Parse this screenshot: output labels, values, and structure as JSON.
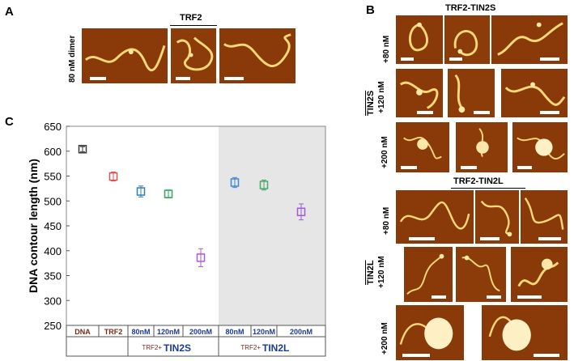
{
  "panelA": {
    "letter": "A",
    "header": "TRF2",
    "row_label": "80 nM dimer"
  },
  "panelB": {
    "letter": "B",
    "header_top": "TRF2-TIN2S",
    "group_top_label": "TIN2S",
    "header_bottom": "TRF2-TIN2L",
    "group_bottom_label": "TIN2L",
    "rows_top": [
      "+80 nM",
      "+120 nM",
      "+200 nM"
    ],
    "rows_bottom": [
      "+80 nM",
      "+120 nM",
      "+200 nM"
    ]
  },
  "panelC": {
    "letter": "C"
  },
  "chart_data": {
    "type": "scatter",
    "ylabel": "DNA contour length (nm)",
    "ylim": [
      250,
      650
    ],
    "yticks": [
      250,
      300,
      350,
      400,
      450,
      500,
      550,
      600,
      650
    ],
    "grid": false,
    "categories": [
      "DNA",
      "TRF2",
      "80nM",
      "120nM",
      "200nM",
      "80nM",
      "120nM",
      "200nM"
    ],
    "values": [
      604,
      549,
      519,
      514,
      386,
      537,
      532,
      478
    ],
    "errors": [
      5,
      9,
      11,
      8,
      18,
      10,
      10,
      16
    ],
    "colors": [
      "#3a3a3a",
      "#d9534f",
      "#2f7fb5",
      "#2fa56a",
      "#b05ad0",
      "#3f86d6",
      "#49a86a",
      "#a05ad8"
    ],
    "label_colors": [
      "#7a2a1a",
      "#7a2a1a",
      "#1a3a9a",
      "#1a3a9a",
      "#1a3a9a",
      "#1a3a9a",
      "#1a3a9a",
      "#1a3a9a"
    ],
    "groups": [
      {
        "prefix": "TRF2+",
        "name": "TIN2S"
      },
      {
        "prefix": "TRF2+",
        "name": "TIN2L"
      }
    ],
    "shaded_region_color": "#e6e6e6"
  }
}
